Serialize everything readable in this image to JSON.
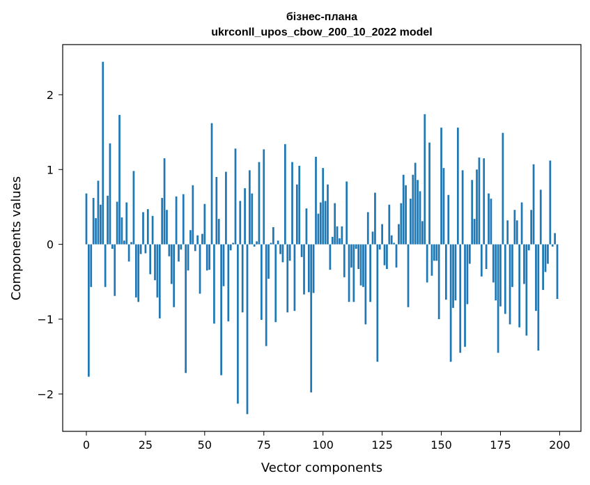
{
  "chart_data": {
    "type": "bar",
    "title": "бізнес-плана",
    "subtitle": "ukrconll_upos_cbow_200_10_2022 model",
    "xlabel": "Vector components",
    "ylabel": "Components values",
    "xlim": [
      -10,
      209
    ],
    "ylim": [
      -2.5,
      2.67
    ],
    "xticks": [
      0,
      25,
      50,
      75,
      100,
      125,
      150,
      175,
      200
    ],
    "yticks": [
      -2,
      -1,
      0,
      1,
      2
    ],
    "ytick_labels": [
      "−2",
      "−1",
      "0",
      "1",
      "2"
    ],
    "bar_color": "#1f77b4",
    "grid": false,
    "values": [
      0.68,
      -1.77,
      -0.57,
      0.62,
      0.35,
      0.85,
      0.53,
      2.44,
      -0.57,
      0.65,
      1.35,
      -0.06,
      -0.69,
      0.57,
      1.73,
      0.36,
      0.05,
      0.56,
      -0.23,
      0.03,
      0.98,
      -0.71,
      -0.77,
      -0.13,
      0.43,
      -0.12,
      0.47,
      -0.4,
      0.38,
      -0.48,
      -0.71,
      -0.99,
      0.62,
      1.15,
      0.46,
      -0.16,
      -0.53,
      -0.84,
      0.64,
      -0.23,
      -0.07,
      0.67,
      -1.72,
      -0.35,
      0.19,
      0.79,
      -0.09,
      0.12,
      -0.66,
      0.14,
      0.54,
      -0.35,
      -0.34,
      1.62,
      -1.06,
      0.9,
      0.34,
      -1.75,
      -0.56,
      0.97,
      -1.03,
      -0.08,
      0.02,
      1.28,
      -2.13,
      0.58,
      -0.91,
      0.75,
      -2.27,
      0.99,
      0.68,
      -0.03,
      0.04,
      1.1,
      -1.01,
      1.27,
      -1.36,
      -0.46,
      0.02,
      0.23,
      -1.04,
      0.05,
      -0.13,
      -0.24,
      1.34,
      -0.91,
      -0.22,
      1.1,
      -0.89,
      0.8,
      1.05,
      -0.17,
      -0.67,
      0.48,
      -0.64,
      -1.98,
      -0.65,
      1.17,
      0.41,
      0.56,
      1.02,
      0.58,
      0.8,
      -0.34,
      0.1,
      0.55,
      0.24,
      0.08,
      0.24,
      -0.44,
      0.84,
      -0.77,
      -0.31,
      -0.77,
      -0.06,
      -0.33,
      -0.55,
      -0.57,
      -1.07,
      0.43,
      -0.77,
      0.17,
      0.69,
      -1.57,
      -0.07,
      0.27,
      -0.28,
      -0.33,
      0.53,
      0.12,
      0.02,
      -0.31,
      0.27,
      0.55,
      0.93,
      0.79,
      -0.84,
      0.61,
      0.93,
      1.09,
      0.86,
      0.71,
      0.31,
      1.74,
      -0.51,
      1.36,
      -0.42,
      -0.22,
      -0.22,
      -1.0,
      1.56,
      1.02,
      -0.74,
      0.66,
      -1.57,
      -0.85,
      -0.75,
      1.56,
      -1.45,
      0.99,
      -1.37,
      -0.8,
      -0.26,
      0.86,
      0.34,
      1.0,
      1.16,
      -0.43,
      1.15,
      -0.33,
      0.68,
      0.61,
      -0.51,
      -0.75,
      -1.45,
      -0.83,
      1.49,
      -0.93,
      0.32,
      -1.07,
      -0.57,
      0.46,
      0.32,
      -1.11,
      0.56,
      -0.53,
      -1.22,
      -0.08,
      0.46,
      1.07,
      -0.89,
      -1.42,
      0.73,
      -0.61,
      -0.37,
      -0.26,
      1.12,
      -0.03,
      0.15,
      -0.73
    ]
  }
}
